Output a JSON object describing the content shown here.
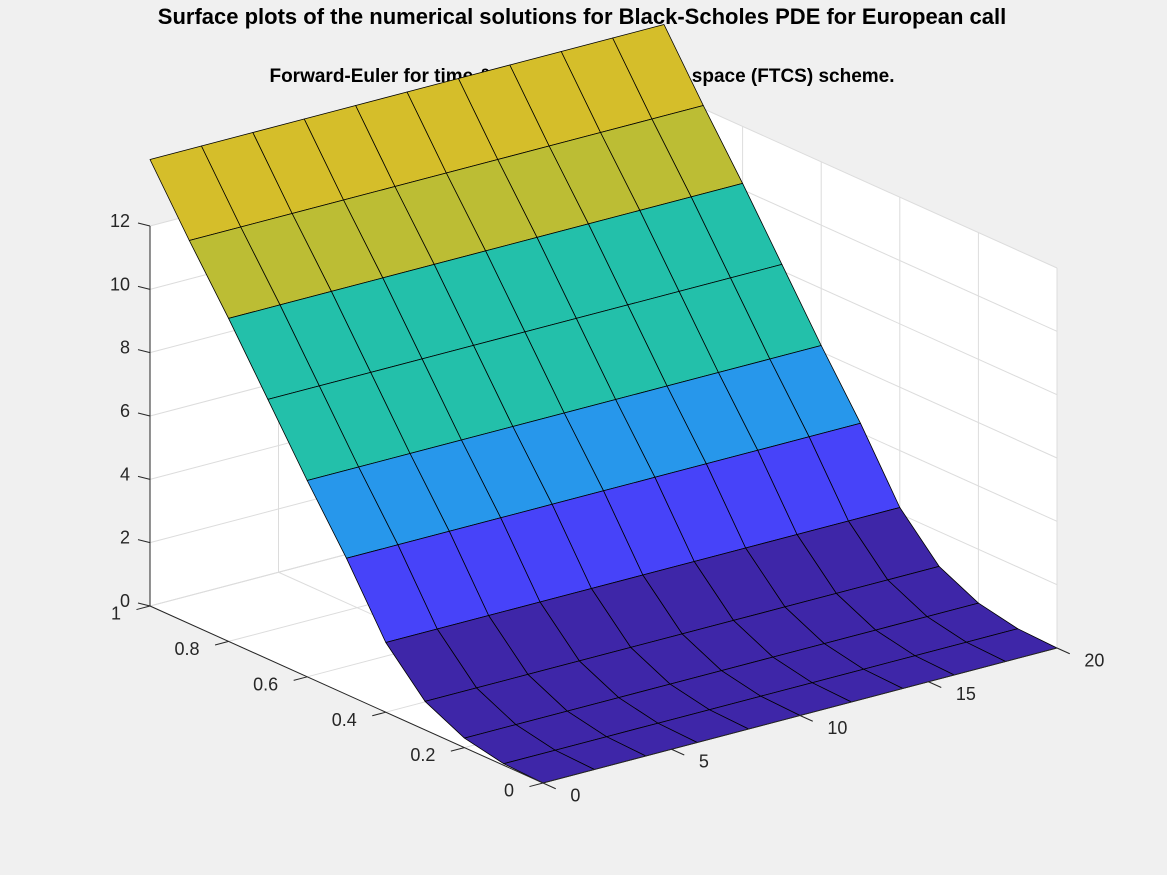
{
  "chart_data": {
    "type": "surface",
    "title": "Surface plots of the numerical solutions for Black-Scholes PDE for European call",
    "subtitle": "Forward-Euler for time & central difference for space (FTCS) scheme.",
    "x": [
      0,
      2,
      4,
      6,
      8,
      10,
      12,
      14,
      16,
      18,
      20
    ],
    "y": [
      0,
      0.1,
      0.2,
      0.3,
      0.4,
      0.5,
      0.6,
      0.7,
      0.8,
      0.9,
      1
    ],
    "z_at_y": [
      0,
      0.05,
      0.3,
      0.9,
      2.2,
      4.3,
      6.2,
      8.2,
      10.2,
      12.1,
      14.1
    ],
    "xlim": [
      0,
      20
    ],
    "ylim": [
      0,
      1
    ],
    "zlim": [
      0,
      12
    ],
    "xticks": [
      "0",
      "5",
      "10",
      "15",
      "20"
    ],
    "yticks": [
      "0",
      "0.2",
      "0.4",
      "0.6",
      "0.8",
      "1"
    ],
    "zticks": [
      "0",
      "2",
      "4",
      "6",
      "8",
      "10",
      "12"
    ],
    "grid": true,
    "colormap": [
      "#3e26a8",
      "#4743f9",
      "#2797eb",
      "#23c0aa",
      "#bcbd34",
      "#d5be2a"
    ]
  }
}
